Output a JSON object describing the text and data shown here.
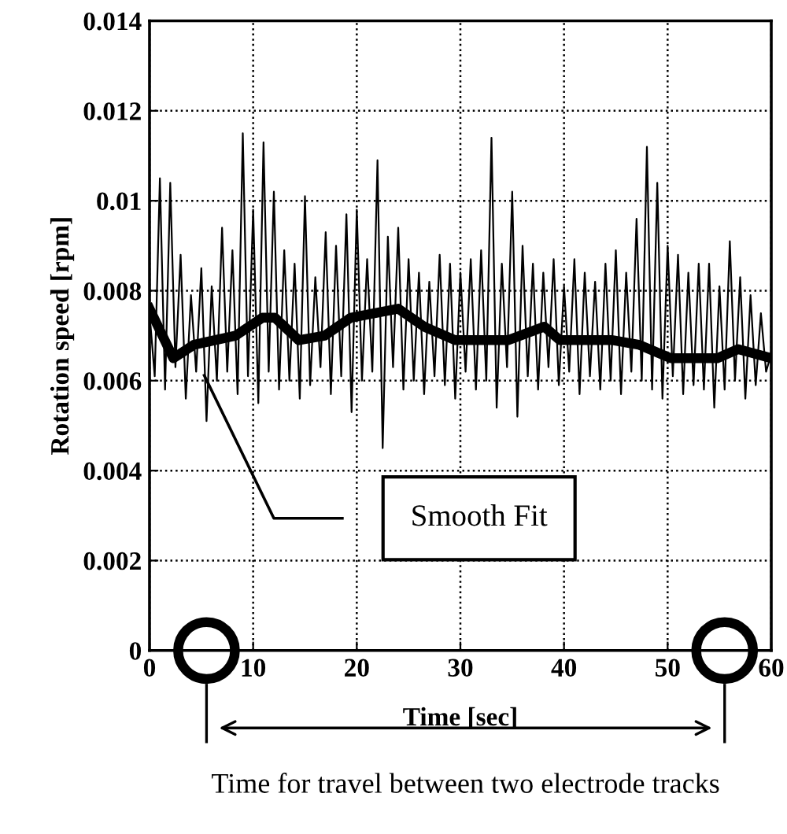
{
  "chart_data": {
    "type": "line",
    "xlabel": "Time [sec]",
    "ylabel": "Rotation speed [rpm]",
    "xlim": [
      0,
      60
    ],
    "xticks": [
      0,
      10,
      20,
      30,
      40,
      50,
      60
    ],
    "ylim": [
      0,
      0.014
    ],
    "yticks": [
      0,
      0.002,
      0.004,
      0.006,
      0.008,
      0.01,
      0.012,
      0.014
    ],
    "grid": true,
    "series": [
      {
        "color": "#000000",
        "x": [
          0,
          0.5,
          1,
          1.5,
          2,
          2.5,
          3,
          3.5,
          4,
          4.5,
          5,
          5.5,
          6,
          6.5,
          7,
          7.5,
          8,
          8.5,
          9,
          9.5,
          10,
          10.5,
          11,
          11.5,
          12,
          12.5,
          13,
          13.5,
          14,
          14.5,
          15,
          15.5,
          16,
          16.5,
          17,
          17.5,
          18,
          18.5,
          19,
          19.5,
          20,
          20.5,
          21,
          21.5,
          22,
          22.5,
          23,
          23.5,
          24,
          24.5,
          25,
          25.5,
          26,
          26.5,
          27,
          27.5,
          28,
          28.5,
          29,
          29.5,
          30,
          30.5,
          31,
          31.5,
          32,
          32.5,
          33,
          33.5,
          34,
          34.5,
          35,
          35.5,
          36,
          36.5,
          37,
          37.5,
          38,
          38.5,
          39,
          39.5,
          40,
          40.5,
          41,
          41.5,
          42,
          42.5,
          43,
          43.5,
          44,
          44.5,
          45,
          45.5,
          46,
          46.5,
          47,
          47.5,
          48,
          48.5,
          49,
          49.5,
          50,
          50.5,
          51,
          51.5,
          52,
          52.5,
          53,
          53.5,
          54,
          54.5,
          55,
          55.5,
          56,
          56.5,
          57,
          57.5,
          58,
          58.5,
          59,
          59.5,
          60
        ],
        "values": [
          0.0075,
          0.0061,
          0.0105,
          0.0058,
          0.0104,
          0.0063,
          0.0088,
          0.0056,
          0.0079,
          0.0062,
          0.0085,
          0.0051,
          0.0081,
          0.006,
          0.0094,
          0.0062,
          0.0089,
          0.0057,
          0.0115,
          0.0061,
          0.0098,
          0.0055,
          0.0113,
          0.0062,
          0.0102,
          0.0058,
          0.0089,
          0.006,
          0.0086,
          0.0056,
          0.0101,
          0.0059,
          0.0083,
          0.0063,
          0.0093,
          0.0057,
          0.009,
          0.0061,
          0.0097,
          0.0053,
          0.0098,
          0.006,
          0.0087,
          0.0062,
          0.0109,
          0.0045,
          0.0092,
          0.0063,
          0.0094,
          0.0058,
          0.0087,
          0.006,
          0.0084,
          0.0057,
          0.0082,
          0.0061,
          0.0088,
          0.0059,
          0.0086,
          0.0056,
          0.0084,
          0.0062,
          0.0087,
          0.0058,
          0.0089,
          0.006,
          0.0114,
          0.0054,
          0.0086,
          0.0063,
          0.0102,
          0.0052,
          0.009,
          0.0061,
          0.0086,
          0.0058,
          0.0084,
          0.0063,
          0.0087,
          0.0059,
          0.0081,
          0.0062,
          0.0087,
          0.0057,
          0.0084,
          0.0061,
          0.0082,
          0.0058,
          0.0086,
          0.006,
          0.0089,
          0.0057,
          0.0084,
          0.0062,
          0.0096,
          0.006,
          0.0112,
          0.0058,
          0.0104,
          0.0056,
          0.009,
          0.0061,
          0.0088,
          0.0057,
          0.0084,
          0.0059,
          0.0086,
          0.0058,
          0.0086,
          0.0054,
          0.0081,
          0.0058,
          0.0091,
          0.006,
          0.0083,
          0.0056,
          0.0079,
          0.0059,
          0.0075,
          0.0062,
          0.0066
        ]
      },
      {
        "color": "#000000",
        "x": [
          0,
          2.3,
          4.3,
          8.3,
          10.9,
          12.1,
          14.4,
          16.9,
          19.4,
          24,
          26.5,
          29.5,
          34.6,
          38.1,
          39.6,
          44.7,
          47.2,
          50.3,
          54.8,
          56.8,
          60
        ],
        "values": [
          0.0076,
          0.0065,
          0.0068,
          0.007,
          0.0074,
          0.0074,
          0.0069,
          0.007,
          0.0074,
          0.0076,
          0.0072,
          0.0069,
          0.0069,
          0.0072,
          0.0069,
          0.0069,
          0.0068,
          0.0065,
          0.0065,
          0.0067,
          0.0065
        ]
      },
      {
        "type": "scatter",
        "color": "#000000",
        "marker": "circle",
        "x": [
          5.5,
          55.5
        ],
        "values": [
          0,
          0
        ]
      }
    ],
    "annotations": [
      "Smooth Fit",
      "Time for travel between two electrode tracks"
    ]
  }
}
